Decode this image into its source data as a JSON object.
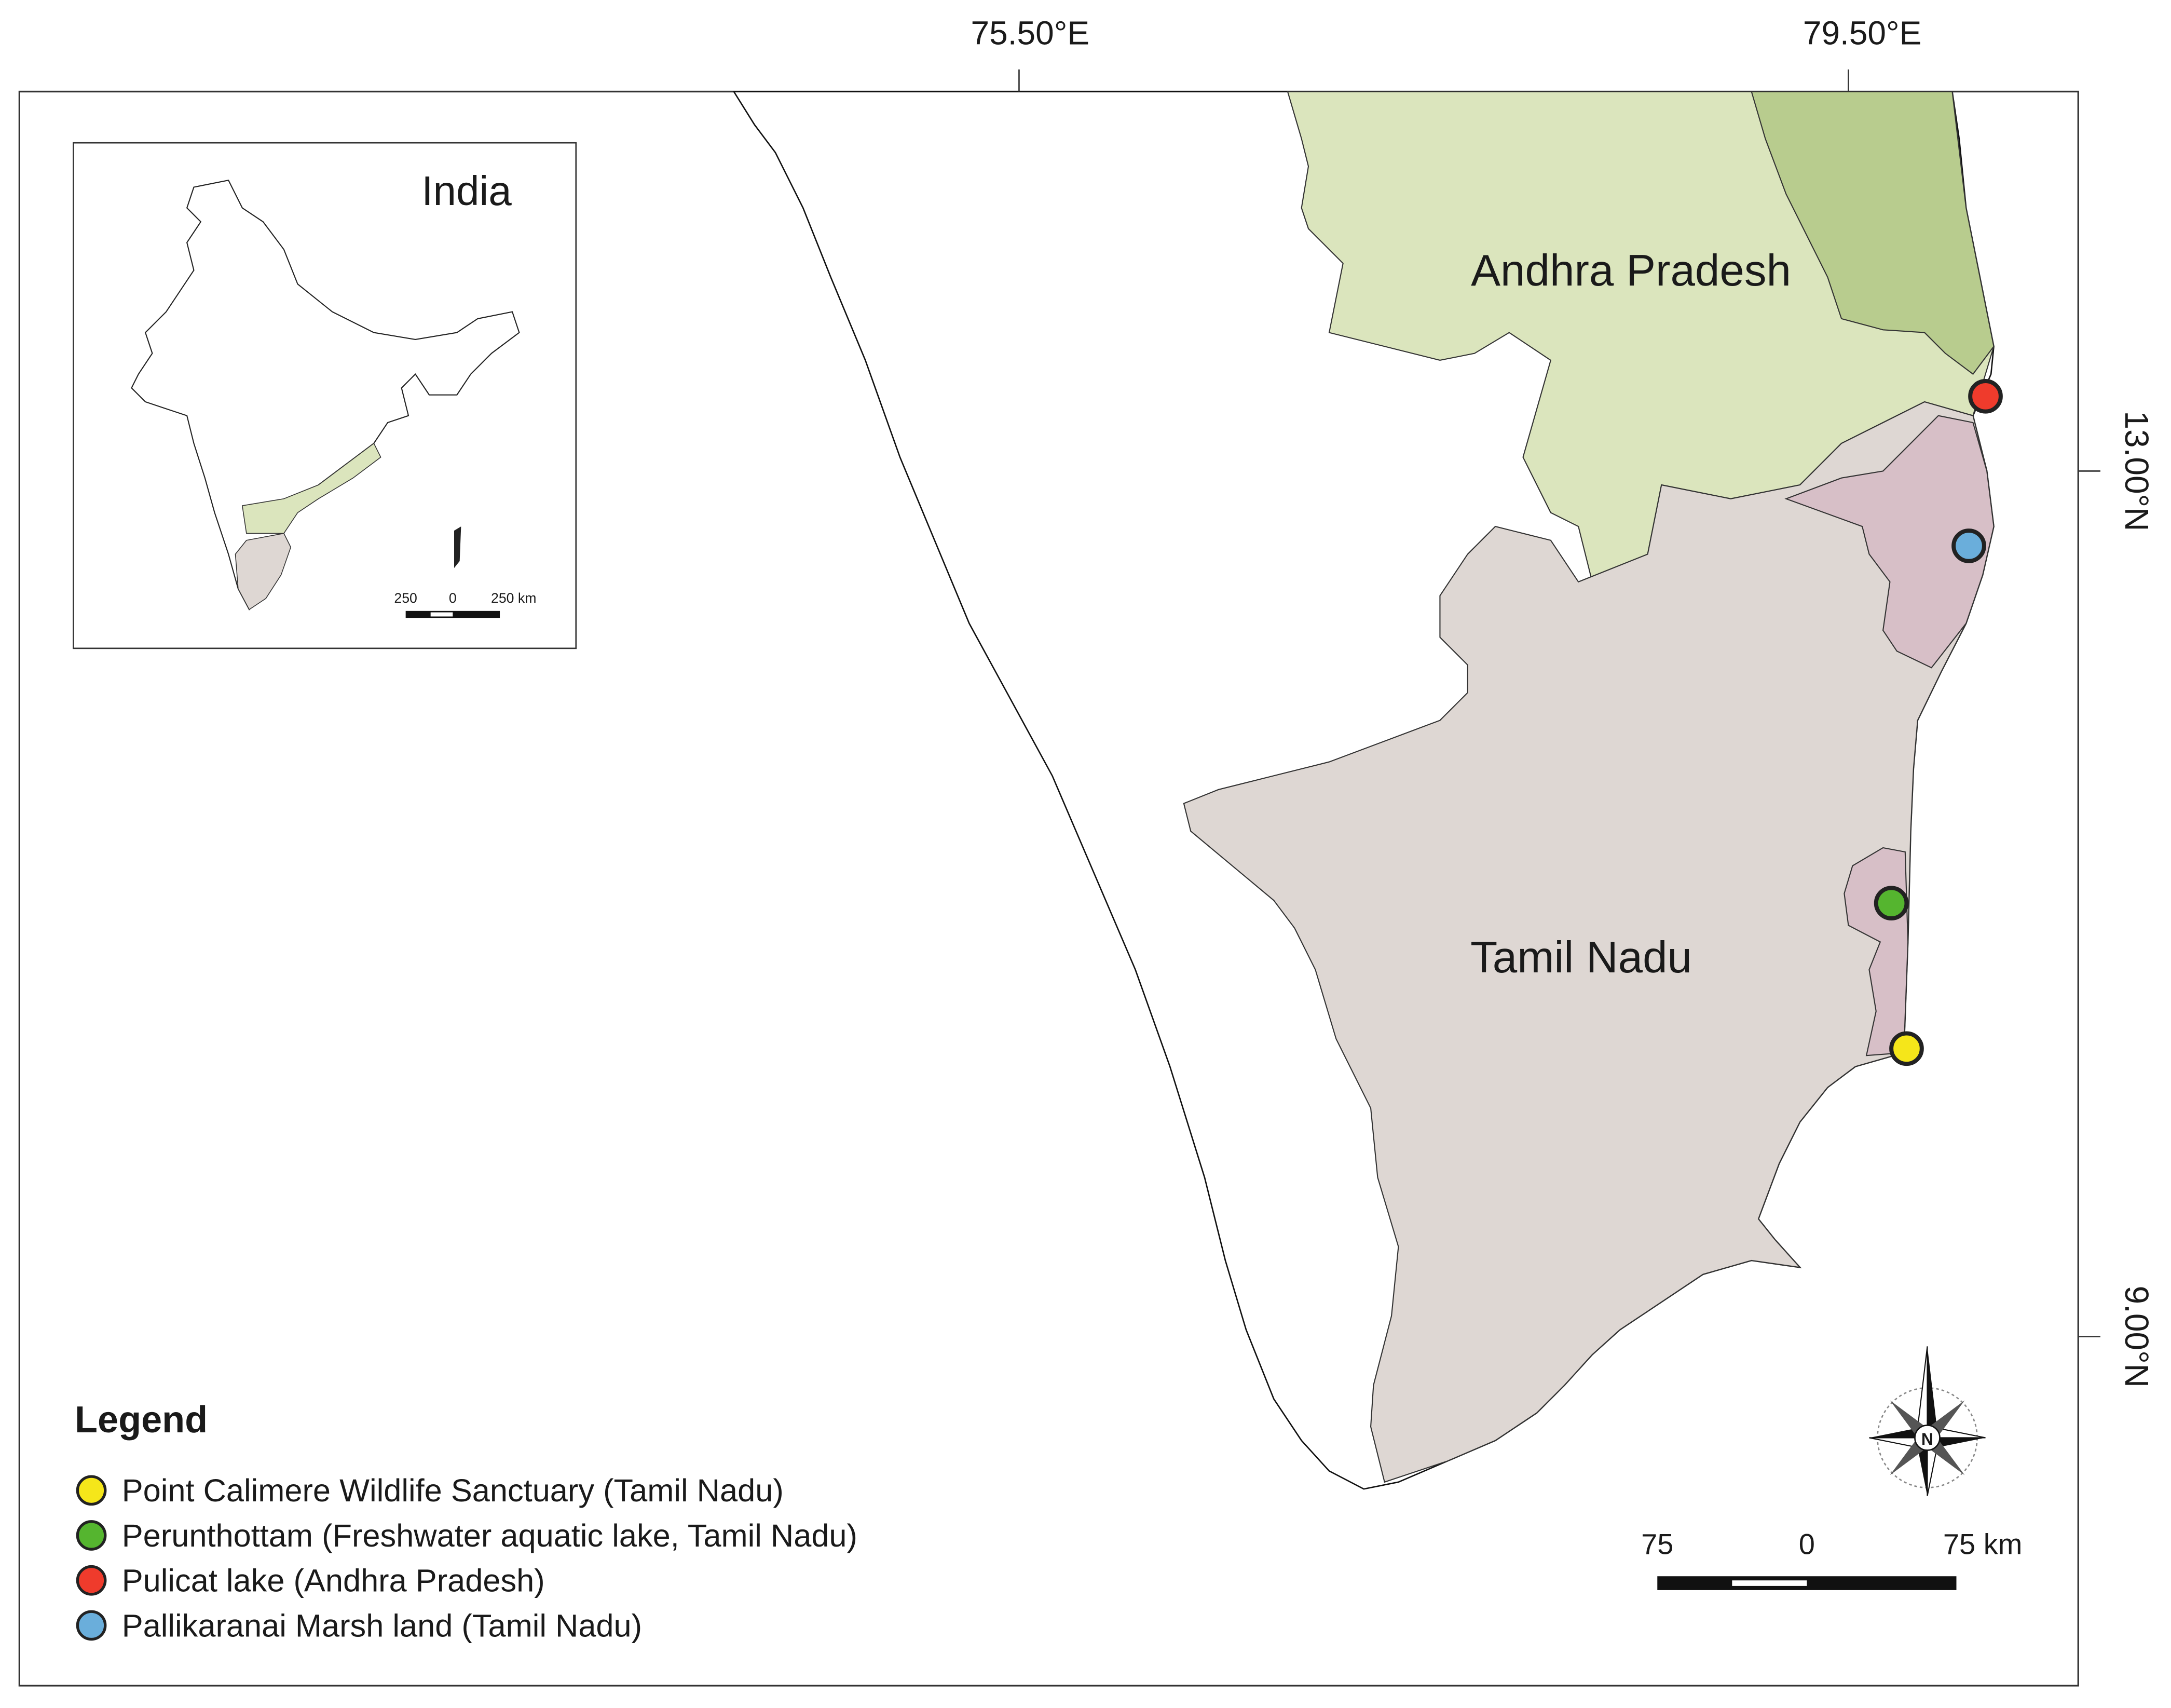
{
  "graticule": {
    "top": [
      "75.50°E",
      "79.50°E"
    ],
    "right": [
      "13.00°N",
      "9.00°N"
    ]
  },
  "inset": {
    "title": "India",
    "scale": [
      "250",
      "0",
      "250 km"
    ]
  },
  "regions": {
    "andhra_pradesh": {
      "label": "Andhra Pradesh",
      "color": "#dbe5bd",
      "dark_color": "#b8cc8e"
    },
    "tamil_nadu": {
      "label": "Tamil Nadu",
      "color": "#ded7d3",
      "district_color": "#d7bfc7"
    }
  },
  "legend": {
    "title": "Legend",
    "items": [
      {
        "label": "Point Calimere Wildlife Sanctuary (Tamil Nadu)",
        "color": "#f5e61a"
      },
      {
        "label": "Perunthottam (Freshwater aquatic lake, Tamil Nadu)",
        "color": "#55b52f"
      },
      {
        "label": "Pulicat lake (Andhra Pradesh)",
        "color": "#ef3b2c"
      },
      {
        "label": "Pallikaranai Marsh land (Tamil Nadu)",
        "color": "#6aaedb"
      }
    ]
  },
  "scale_bar": [
    "75",
    "0",
    "75 km"
  ],
  "north_arrow": "N"
}
